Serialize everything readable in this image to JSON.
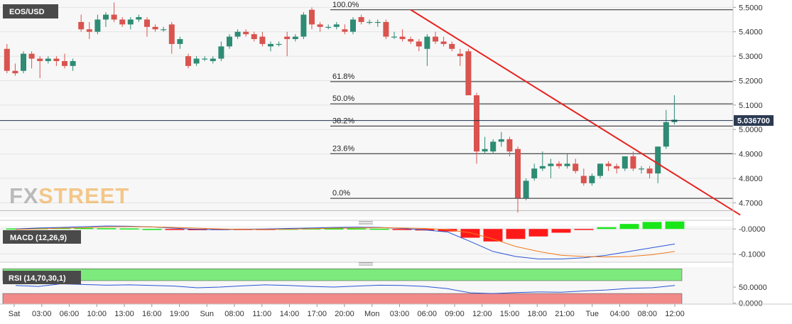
{
  "symbol": "EOS/USD",
  "watermark": {
    "left": "FX",
    "right": "STREET"
  },
  "current_price": {
    "label": "5.036700",
    "value": 5.0367
  },
  "colors": {
    "up": "#2e8b74",
    "down": "#d9534f",
    "trendline": "#e8231f",
    "macd_line": "#2a55d6",
    "signal_line": "#f07a1a",
    "hist_pos": "#19e619",
    "hist_neg": "#ff1a1a",
    "rsi_line": "#2a55d6",
    "rsi_upper_zone": "#7dea7d",
    "rsi_lower_zone": "#f28a8a",
    "pane_label_bg": "#4a4a4a",
    "price_tag_bg": "#2b3a52"
  },
  "x_axis_labels": [
    "Sat",
    "03:00",
    "06:00",
    "10:00",
    "13:00",
    "16:00",
    "19:00",
    "Sun",
    "08:00",
    "11:00",
    "14:00",
    "17:00",
    "20:00",
    "Mon",
    "03:00",
    "06:00",
    "09:00",
    "12:00",
    "15:00",
    "18:00",
    "21:00",
    "Tue",
    "04:00",
    "08:00",
    "12:00"
  ],
  "fib_levels": [
    {
      "label": "100.0%",
      "price": 5.49
    },
    {
      "label": "61.8%",
      "price": 5.196
    },
    {
      "label": "50.0%",
      "price": 5.105
    },
    {
      "label": "38.2%",
      "price": 5.014
    },
    {
      "label": "23.6%",
      "price": 4.901
    },
    {
      "label": "0.0%",
      "price": 4.718
    }
  ],
  "chart_data": [
    {
      "type": "candlestick",
      "title": "EOS/USD",
      "ylim": [
        4.64,
        5.53
      ],
      "y_ticks": [
        "5.5000",
        "5.4000",
        "5.3000",
        "5.2000",
        "5.1000",
        "5.0000",
        "4.9000",
        "4.8000",
        "4.7000"
      ],
      "candles": [
        {
          "o": 5.33,
          "h": 5.35,
          "l": 5.23,
          "c": 5.24
        },
        {
          "o": 5.24,
          "h": 5.27,
          "l": 5.22,
          "c": 5.23
        },
        {
          "o": 5.24,
          "h": 5.32,
          "l": 5.23,
          "c": 5.31
        },
        {
          "o": 5.31,
          "h": 5.32,
          "l": 5.25,
          "c": 5.29
        },
        {
          "o": 5.29,
          "h": 5.3,
          "l": 5.21,
          "c": 5.28
        },
        {
          "o": 5.28,
          "h": 5.3,
          "l": 5.27,
          "c": 5.29
        },
        {
          "o": 5.29,
          "h": 5.3,
          "l": 5.26,
          "c": 5.28
        },
        {
          "o": 5.28,
          "h": 5.31,
          "l": 5.25,
          "c": 5.26
        },
        {
          "o": 5.26,
          "h": 5.29,
          "l": 5.24,
          "c": 5.28
        },
        {
          "o": 5.44,
          "h": 5.47,
          "l": 5.4,
          "c": 5.41
        },
        {
          "o": 5.41,
          "h": 5.44,
          "l": 5.37,
          "c": 5.4
        },
        {
          "o": 5.4,
          "h": 5.47,
          "l": 5.39,
          "c": 5.45
        },
        {
          "o": 5.45,
          "h": 5.48,
          "l": 5.42,
          "c": 5.47
        },
        {
          "o": 5.47,
          "h": 5.52,
          "l": 5.44,
          "c": 5.45
        },
        {
          "o": 5.45,
          "h": 5.46,
          "l": 5.42,
          "c": 5.43
        },
        {
          "o": 5.43,
          "h": 5.46,
          "l": 5.41,
          "c": 5.45
        },
        {
          "o": 5.45,
          "h": 5.47,
          "l": 5.44,
          "c": 5.46
        },
        {
          "o": 5.45,
          "h": 5.46,
          "l": 5.38,
          "c": 5.42
        },
        {
          "o": 5.42,
          "h": 5.43,
          "l": 5.4,
          "c": 5.41
        },
        {
          "o": 5.41,
          "h": 5.42,
          "l": 5.4,
          "c": 5.41
        },
        {
          "o": 5.43,
          "h": 5.44,
          "l": 5.31,
          "c": 5.35
        },
        {
          "o": 5.35,
          "h": 5.38,
          "l": 5.33,
          "c": 5.37
        },
        {
          "o": 5.3,
          "h": 5.31,
          "l": 5.25,
          "c": 5.26
        },
        {
          "o": 5.27,
          "h": 5.3,
          "l": 5.26,
          "c": 5.29
        },
        {
          "o": 5.29,
          "h": 5.3,
          "l": 5.28,
          "c": 5.29
        },
        {
          "o": 5.28,
          "h": 5.3,
          "l": 5.27,
          "c": 5.29
        },
        {
          "o": 5.29,
          "h": 5.36,
          "l": 5.28,
          "c": 5.34
        },
        {
          "o": 5.34,
          "h": 5.39,
          "l": 5.33,
          "c": 5.38
        },
        {
          "o": 5.38,
          "h": 5.41,
          "l": 5.37,
          "c": 5.4
        },
        {
          "o": 5.4,
          "h": 5.41,
          "l": 5.38,
          "c": 5.39
        },
        {
          "o": 5.39,
          "h": 5.4,
          "l": 5.36,
          "c": 5.37
        },
        {
          "o": 5.38,
          "h": 5.4,
          "l": 5.34,
          "c": 5.35
        },
        {
          "o": 5.34,
          "h": 5.36,
          "l": 5.32,
          "c": 5.35
        },
        {
          "o": 5.35,
          "h": 5.36,
          "l": 5.34,
          "c": 5.35
        },
        {
          "o": 5.38,
          "h": 5.4,
          "l": 5.3,
          "c": 5.37
        },
        {
          "o": 5.37,
          "h": 5.39,
          "l": 5.36,
          "c": 5.38
        },
        {
          "o": 5.38,
          "h": 5.48,
          "l": 5.37,
          "c": 5.47
        },
        {
          "o": 5.49,
          "h": 5.5,
          "l": 5.41,
          "c": 5.43
        },
        {
          "o": 5.43,
          "h": 5.44,
          "l": 5.4,
          "c": 5.42
        },
        {
          "o": 5.42,
          "h": 5.43,
          "l": 5.41,
          "c": 5.42
        },
        {
          "o": 5.42,
          "h": 5.44,
          "l": 5.41,
          "c": 5.43
        },
        {
          "o": 5.41,
          "h": 5.43,
          "l": 5.39,
          "c": 5.4
        },
        {
          "o": 5.4,
          "h": 5.46,
          "l": 5.39,
          "c": 5.45
        },
        {
          "o": 5.46,
          "h": 5.47,
          "l": 5.43,
          "c": 5.44
        },
        {
          "o": 5.44,
          "h": 5.45,
          "l": 5.43,
          "c": 5.44
        },
        {
          "o": 5.44,
          "h": 5.45,
          "l": 5.42,
          "c": 5.44
        },
        {
          "o": 5.44,
          "h": 5.45,
          "l": 5.37,
          "c": 5.38
        },
        {
          "o": 5.38,
          "h": 5.4,
          "l": 5.37,
          "c": 5.38
        },
        {
          "o": 5.38,
          "h": 5.41,
          "l": 5.36,
          "c": 5.37
        },
        {
          "o": 5.37,
          "h": 5.38,
          "l": 5.35,
          "c": 5.36
        },
        {
          "o": 5.36,
          "h": 5.37,
          "l": 5.32,
          "c": 5.34
        },
        {
          "o": 5.33,
          "h": 5.39,
          "l": 5.26,
          "c": 5.38
        },
        {
          "o": 5.38,
          "h": 5.4,
          "l": 5.35,
          "c": 5.36
        },
        {
          "o": 5.36,
          "h": 5.38,
          "l": 5.34,
          "c": 5.35
        },
        {
          "o": 5.35,
          "h": 5.36,
          "l": 5.32,
          "c": 5.33
        },
        {
          "o": 5.31,
          "h": 5.33,
          "l": 5.26,
          "c": 5.3
        },
        {
          "o": 5.32,
          "h": 5.33,
          "l": 5.14,
          "c": 5.14
        },
        {
          "o": 5.14,
          "h": 5.15,
          "l": 4.86,
          "c": 4.91
        },
        {
          "o": 4.91,
          "h": 4.97,
          "l": 4.9,
          "c": 4.92
        },
        {
          "o": 4.91,
          "h": 4.96,
          "l": 4.9,
          "c": 4.95
        },
        {
          "o": 4.95,
          "h": 4.99,
          "l": 4.93,
          "c": 4.96
        },
        {
          "o": 4.96,
          "h": 4.97,
          "l": 4.89,
          "c": 4.91
        },
        {
          "o": 4.92,
          "h": 4.93,
          "l": 4.66,
          "c": 4.72
        },
        {
          "o": 4.72,
          "h": 4.8,
          "l": 4.71,
          "c": 4.79
        },
        {
          "o": 4.8,
          "h": 4.86,
          "l": 4.79,
          "c": 4.84
        },
        {
          "o": 4.84,
          "h": 4.91,
          "l": 4.83,
          "c": 4.85
        },
        {
          "o": 4.85,
          "h": 4.88,
          "l": 4.8,
          "c": 4.86
        },
        {
          "o": 4.86,
          "h": 4.87,
          "l": 4.84,
          "c": 4.85
        },
        {
          "o": 4.85,
          "h": 4.9,
          "l": 4.84,
          "c": 4.86
        },
        {
          "o": 4.86,
          "h": 4.88,
          "l": 4.82,
          "c": 4.83
        },
        {
          "o": 4.81,
          "h": 4.84,
          "l": 4.77,
          "c": 4.78
        },
        {
          "o": 4.78,
          "h": 4.82,
          "l": 4.77,
          "c": 4.81
        },
        {
          "o": 4.81,
          "h": 4.86,
          "l": 4.8,
          "c": 4.86
        },
        {
          "o": 4.86,
          "h": 4.87,
          "l": 4.83,
          "c": 4.85
        },
        {
          "o": 4.85,
          "h": 4.86,
          "l": 4.82,
          "c": 4.84
        },
        {
          "o": 4.84,
          "h": 4.89,
          "l": 4.83,
          "c": 4.89
        },
        {
          "o": 4.89,
          "h": 4.91,
          "l": 4.83,
          "c": 4.84
        },
        {
          "o": 4.84,
          "h": 4.85,
          "l": 4.82,
          "c": 4.84
        },
        {
          "o": 4.84,
          "h": 4.85,
          "l": 4.8,
          "c": 4.82
        },
        {
          "o": 4.82,
          "h": 4.93,
          "l": 4.78,
          "c": 4.93
        },
        {
          "o": 4.93,
          "h": 5.08,
          "l": 4.92,
          "c": 5.03
        },
        {
          "o": 5.03,
          "h": 5.14,
          "l": 5.02,
          "c": 5.04
        }
      ],
      "trendline": [
        {
          "price": 5.49,
          "bar": 49
        },
        {
          "price": 4.65,
          "bar": 89
        }
      ]
    },
    {
      "type": "line",
      "title": "MACD (12,26,9)",
      "ylim": [
        -0.13,
        0.012
      ],
      "y_ticks": [
        "-0.0000",
        "-0.1000"
      ],
      "series": [
        {
          "role": "macd",
          "values": [
            0.0,
            0.004,
            0.006,
            0.009,
            0.012,
            0.011,
            0.008,
            0.003,
            -0.002,
            -0.003,
            -0.001,
            0.0,
            0.002,
            0.004,
            0.006,
            0.007,
            0.006,
            0.002,
            -0.004,
            -0.012,
            -0.05,
            -0.09,
            -0.11,
            -0.12,
            -0.12,
            -0.115,
            -0.105,
            -0.09,
            -0.075,
            -0.06
          ]
        },
        {
          "role": "signal",
          "values": [
            -0.002,
            0.0,
            0.003,
            0.005,
            0.008,
            0.009,
            0.008,
            0.006,
            0.003,
            0.0,
            -0.002,
            -0.002,
            -0.001,
            0.001,
            0.003,
            0.004,
            0.005,
            0.004,
            0.002,
            -0.003,
            -0.015,
            -0.04,
            -0.07,
            -0.09,
            -0.105,
            -0.11,
            -0.112,
            -0.11,
            -0.103,
            -0.09
          ]
        }
      ],
      "histogram": [
        0.002,
        0.003,
        0.004,
        0.004,
        0.003,
        0.002,
        0.0,
        -0.003,
        -0.005,
        -0.004,
        -0.002,
        -0.001,
        0.001,
        0.002,
        0.002,
        0.002,
        0.001,
        -0.002,
        -0.006,
        -0.01,
        -0.035,
        -0.05,
        -0.04,
        -0.03,
        -0.015,
        -0.004,
        0.007,
        0.02,
        0.028,
        0.03
      ]
    },
    {
      "type": "line",
      "title": "RSI (14,70,30,1)",
      "ylim": [
        -3,
        112
      ],
      "y_ticks": [
        "50.0000",
        "0.0000"
      ],
      "overbought": 70,
      "oversold": 30,
      "series": [
        {
          "role": "rsi",
          "values": [
            55,
            52,
            60,
            58,
            56,
            57,
            55,
            53,
            48,
            50,
            54,
            57,
            55,
            52,
            50,
            53,
            56,
            55,
            52,
            45,
            32,
            30,
            33,
            35,
            34,
            38,
            41,
            46,
            48,
            55
          ]
        }
      ]
    }
  ]
}
